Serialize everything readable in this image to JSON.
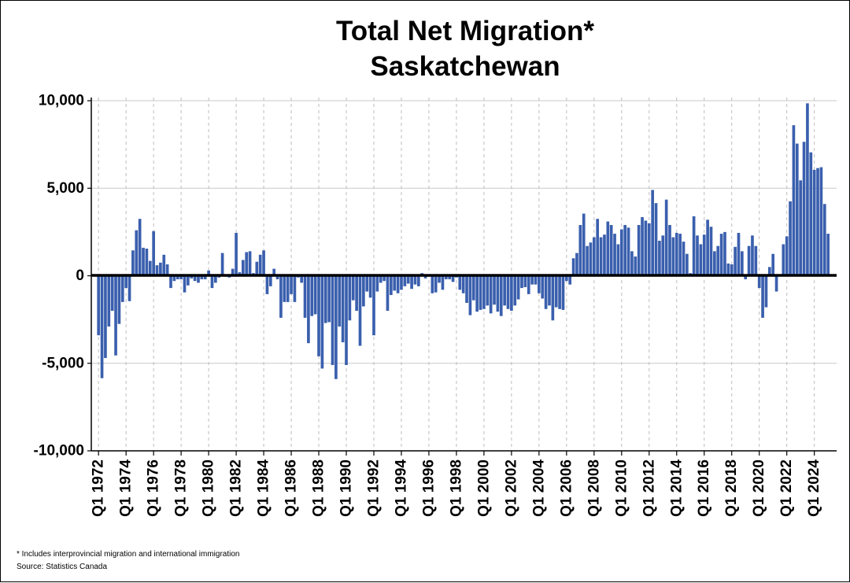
{
  "chart_data": {
    "type": "bar",
    "title": [
      "Total Net Migration*",
      "Saskatchewan"
    ],
    "xlabel": "",
    "ylabel": "",
    "ylim": [
      -10000,
      10000
    ],
    "y_ticks": [
      10000,
      5000,
      0,
      -5000,
      -10000
    ],
    "y_tick_labels": [
      "10,000",
      "5,000",
      "0",
      "-5,000",
      "-10,000"
    ],
    "x_tick_labels": [
      "Q1 1972",
      "Q1 1974",
      "Q1 1976",
      "Q1 1978",
      "Q1 1980",
      "Q1 1982",
      "Q1 1984",
      "Q1 1986",
      "Q1 1988",
      "Q1 1990",
      "Q1 1992",
      "Q1 1994",
      "Q1 1996",
      "Q1 1998",
      "Q1 2000",
      "Q1 2002",
      "Q1 2004",
      "Q1 2006",
      "Q1 2008",
      "Q1 2010",
      "Q1 2012",
      "Q1 2014",
      "Q1 2016",
      "Q1 2018",
      "Q1 2020",
      "Q1 2022",
      "Q1 2024"
    ],
    "x_start": "Q1 1972",
    "x_end": "Q2 2025",
    "grid": {
      "horizontal": true,
      "vertical_dashed": true
    },
    "bar_color": "#3a5fad",
    "series": [
      {
        "values": [
          -3400,
          -5850,
          -4700,
          -2900,
          -2000,
          -4550,
          -2750,
          -1500,
          -700,
          -1450,
          1450,
          2600,
          3250,
          1600,
          1550,
          850,
          2550,
          600,
          750,
          1200,
          650,
          -700,
          -300,
          -200,
          -200,
          -950,
          -550,
          -150,
          -300,
          -400,
          -200,
          -200,
          300,
          -700,
          -400,
          -100,
          1300,
          -50,
          -100,
          400,
          2450,
          200,
          900,
          1350,
          1400,
          150,
          800,
          1200,
          1450,
          -1050,
          -600,
          400,
          -200,
          -2400,
          -1500,
          -1500,
          -1050,
          -1500,
          -100,
          -400,
          -2400,
          -3850,
          -2300,
          -2200,
          -4600,
          -5300,
          -2700,
          -2650,
          -5100,
          -5900,
          -2900,
          -3800,
          -5100,
          -2550,
          -1400,
          -2000,
          -4000,
          -1750,
          -900,
          -1250,
          -3400,
          -900,
          -400,
          -300,
          -2000,
          -1100,
          -850,
          -1000,
          -800,
          -600,
          -450,
          -750,
          -500,
          -600,
          150,
          -150,
          -50,
          -1000,
          -950,
          -400,
          -800,
          -200,
          -200,
          -350,
          -100,
          -800,
          -1000,
          -1550,
          -2250,
          -1400,
          -2050,
          -1950,
          -1900,
          -1700,
          -2150,
          -1650,
          -2050,
          -2300,
          -1700,
          -1900,
          -2000,
          -1700,
          -1350,
          -700,
          -650,
          -1050,
          -500,
          -500,
          -1000,
          -1300,
          -1900,
          -1700,
          -2550,
          -1800,
          -1900,
          -1950,
          -300,
          -500,
          1000,
          1300,
          2900,
          3550,
          1700,
          1900,
          2200,
          3250,
          2200,
          2350,
          3100,
          2900,
          2400,
          1800,
          2650,
          2900,
          2750,
          1400,
          1100,
          2900,
          3350,
          3150,
          3000,
          4900,
          4150,
          2000,
          2300,
          4350,
          2900,
          2200,
          2450,
          2400,
          1950,
          1250,
          150,
          3400,
          2300,
          1800,
          2350,
          3200,
          2800,
          1400,
          1700,
          2400,
          2500,
          700,
          650,
          1650,
          2450,
          1400,
          -200,
          1700,
          2300,
          1700,
          -700,
          -2400,
          -1800,
          500,
          1250,
          -900,
          0,
          1800,
          2250,
          4250,
          8600,
          7550,
          5450,
          7650,
          9850,
          7050,
          6050,
          6150,
          6200,
          4100,
          2400
        ]
      }
    ]
  },
  "footnotes": {
    "note": "* Includes interprovincial migration and international immigration",
    "source": "Source: Statistics Canada"
  }
}
